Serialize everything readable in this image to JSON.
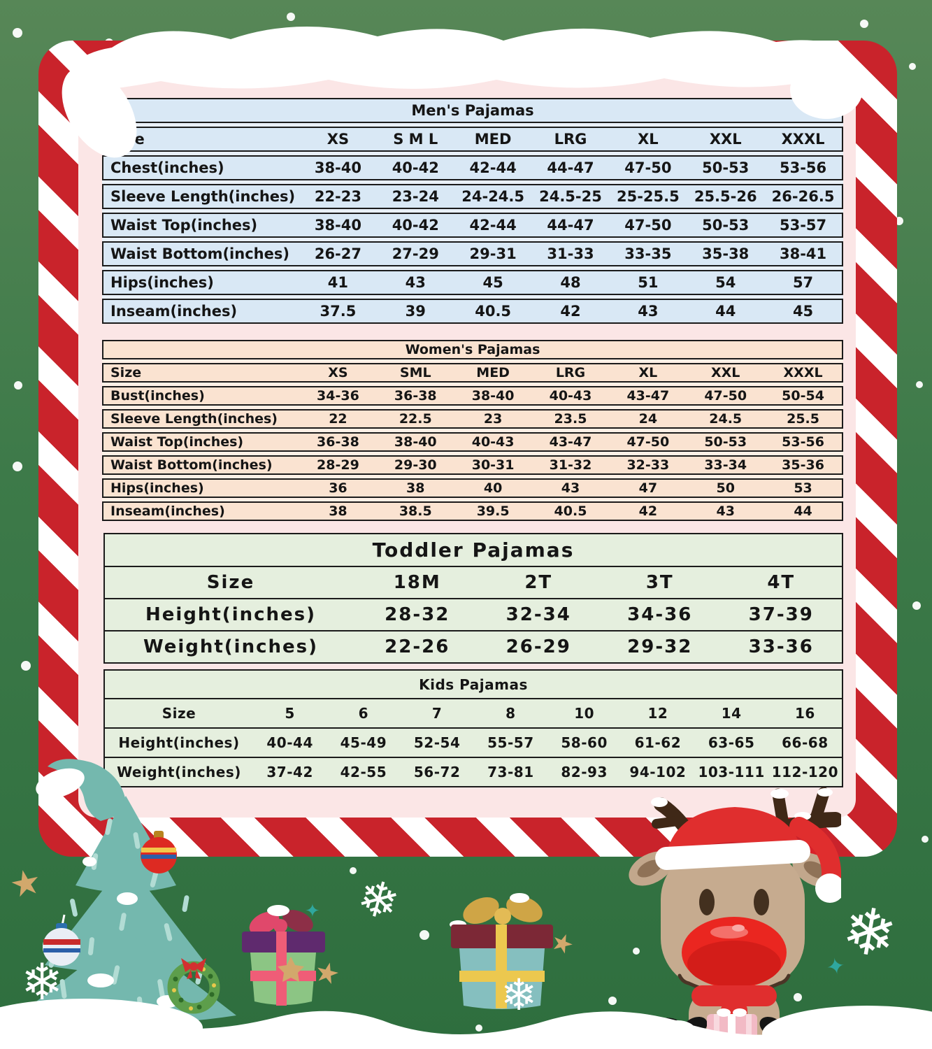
{
  "tables": {
    "mens": {
      "title": "Men's Pajamas",
      "size_label": "Size",
      "sizes": [
        "XS",
        "S M L",
        "MED",
        "LRG",
        "XL",
        "XXL",
        "XXXL"
      ],
      "rows": [
        {
          "label": "Chest(inches)",
          "values": [
            "38-40",
            "40-42",
            "42-44",
            "44-47",
            "47-50",
            "50-53",
            "53-56"
          ]
        },
        {
          "label": "Sleeve Length(inches)",
          "values": [
            "22-23",
            "23-24",
            "24-24.5",
            "24.5-25",
            "25-25.5",
            "25.5-26",
            "26-26.5"
          ]
        },
        {
          "label": "Waist Top(inches)",
          "values": [
            "38-40",
            "40-42",
            "42-44",
            "44-47",
            "47-50",
            "50-53",
            "53-57"
          ]
        },
        {
          "label": "Waist Bottom(inches)",
          "values": [
            "26-27",
            "27-29",
            "29-31",
            "31-33",
            "33-35",
            "35-38",
            "38-41"
          ]
        },
        {
          "label": "Hips(inches)",
          "values": [
            "41",
            "43",
            "45",
            "48",
            "51",
            "54",
            "57"
          ]
        },
        {
          "label": "Inseam(inches)",
          "values": [
            "37.5",
            "39",
            "40.5",
            "42",
            "43",
            "44",
            "45"
          ]
        }
      ]
    },
    "womens": {
      "title": "Women's Pajamas",
      "size_label": "Size",
      "sizes": [
        "XS",
        "SML",
        "MED",
        "LRG",
        "XL",
        "XXL",
        "XXXL"
      ],
      "rows": [
        {
          "label": "Bust(inches)",
          "values": [
            "34-36",
            "36-38",
            "38-40",
            "40-43",
            "43-47",
            "47-50",
            "50-54"
          ]
        },
        {
          "label": "Sleeve Length(inches)",
          "values": [
            "22",
            "22.5",
            "23",
            "23.5",
            "24",
            "24.5",
            "25.5"
          ]
        },
        {
          "label": "Waist Top(inches)",
          "values": [
            "36-38",
            "38-40",
            "40-43",
            "43-47",
            "47-50",
            "50-53",
            "53-56"
          ]
        },
        {
          "label": "Waist Bottom(inches)",
          "values": [
            "28-29",
            "29-30",
            "30-31",
            "31-32",
            "32-33",
            "33-34",
            "35-36"
          ]
        },
        {
          "label": "Hips(inches)",
          "values": [
            "36",
            "38",
            "40",
            "43",
            "47",
            "50",
            "53"
          ]
        },
        {
          "label": "Inseam(inches)",
          "values": [
            "38",
            "38.5",
            "39.5",
            "40.5",
            "42",
            "43",
            "44"
          ]
        }
      ]
    },
    "toddler": {
      "title": "Toddler Pajamas",
      "size_label": "Size",
      "sizes": [
        "18M",
        "2T",
        "3T",
        "4T"
      ],
      "rows": [
        {
          "label": "Height(inches)",
          "values": [
            "28-32",
            "32-34",
            "34-36",
            "37-39"
          ]
        },
        {
          "label": "Weight(inches)",
          "values": [
            "22-26",
            "26-29",
            "29-32",
            "33-36"
          ]
        }
      ]
    },
    "kids": {
      "title": "Kids Pajamas",
      "size_label": "Size",
      "sizes": [
        "5",
        "6",
        "7",
        "8",
        "10",
        "12",
        "14",
        "16"
      ],
      "rows": [
        {
          "label": "Height(inches)",
          "values": [
            "40-44",
            "45-49",
            "52-54",
            "55-57",
            "58-60",
            "61-62",
            "63-65",
            "66-68"
          ]
        },
        {
          "label": "Weight(inches)",
          "values": [
            "37-42",
            "42-55",
            "56-72",
            "73-81",
            "82-93",
            "94-102",
            "103-111",
            "112-120"
          ]
        }
      ]
    }
  },
  "decorations": {
    "glyphs": {
      "snowflake": "❄",
      "star": "★",
      "small_star": "✦"
    },
    "items": [
      "christmas-tree",
      "ornament-balls",
      "wreath",
      "gift-green-pink",
      "gift-teal-yellow",
      "reindeer-santa-hat",
      "snow-drift",
      "snowflakes",
      "stars"
    ]
  },
  "colors": {
    "candy_red": "#c9232b",
    "panel_pink": "#fbe6e6",
    "background_green_top": "#578757",
    "background_green_bottom": "#2e6e3e",
    "mens_row_blue": "#d9e8f5",
    "womens_row_peach": "#fae3d1",
    "kids_row_green": "#e5efde",
    "table_border": "#1b1b1b",
    "tree_teal": "#74b8ae",
    "star_tan": "#d2a86c",
    "star_teal": "#2fa79e"
  }
}
